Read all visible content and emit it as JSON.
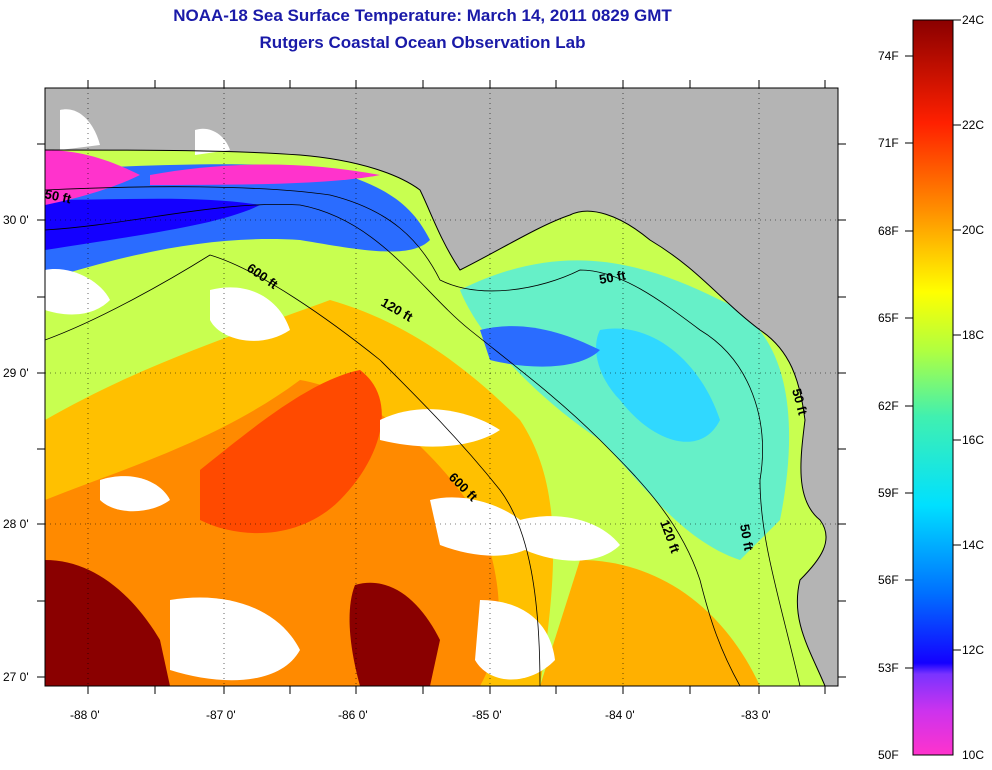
{
  "header": {
    "title": "NOAA-18 Sea Surface Temperature:  March 14, 2011 0829 GMT",
    "subtitle": "Rutgers Coastal Ocean Observation Lab"
  },
  "map": {
    "latitude_labels": [
      "30 0'",
      "29 0'",
      "28 0'",
      "27 0'"
    ],
    "longitude_labels": [
      "-88 0'",
      "-87 0'",
      "-86 0'",
      "-85 0'",
      "-84 0'",
      "-83 0'"
    ],
    "contour_labels": [
      "50 ft",
      "600 ft",
      "120 ft",
      "50 ft",
      "600 ft",
      "120 ft",
      "50 ft",
      "50 ft"
    ],
    "colors": {
      "land": "#b4b4b4",
      "cloud": "#ffffff",
      "grid": "#000000"
    }
  },
  "colorbar": {
    "fahrenheit_labels": [
      "74F",
      "71F",
      "68F",
      "65F",
      "62F",
      "59F",
      "56F",
      "53F",
      "50F"
    ],
    "celsius_labels": [
      "24C",
      "22C",
      "20C",
      "18C",
      "16C",
      "14C",
      "12C",
      "10C"
    ],
    "stops": [
      "#ff33cc",
      "#7a33ff",
      "#1400ff",
      "#0070ff",
      "#00e0ff",
      "#40f0b0",
      "#b0ff40",
      "#ffff00",
      "#ff9000",
      "#ff2000",
      "#8a0000"
    ]
  }
}
